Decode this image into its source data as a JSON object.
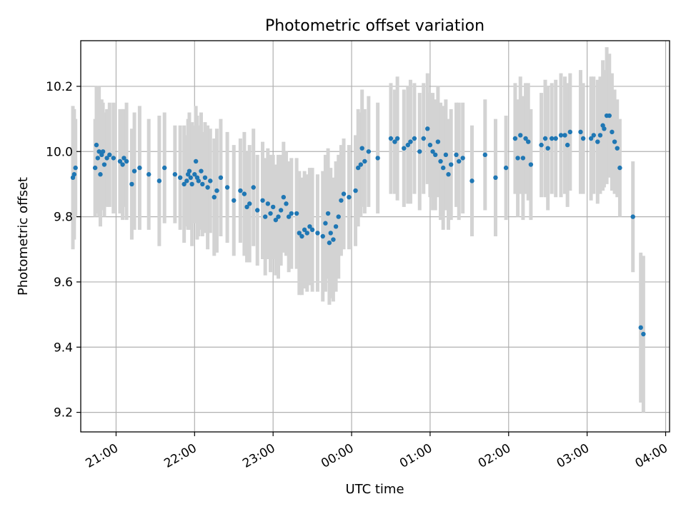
{
  "chart_data": {
    "type": "scatter",
    "title": "Photometric offset variation",
    "xlabel": "UTC time",
    "ylabel": "Photometric offset",
    "x_unit": "UTC time (HH:MM)",
    "xlim": [
      "20:33",
      "04:03"
    ],
    "ylim": [
      9.14,
      10.34
    ],
    "x_ticks": [
      "21:00",
      "22:00",
      "23:00",
      "00:00",
      "01:00",
      "02:00",
      "03:00",
      "04:00"
    ],
    "y_ticks": [
      9.2,
      9.4,
      9.6,
      9.8,
      10.0,
      10.2
    ],
    "y_tick_labels": [
      "9.2",
      "9.4",
      "9.6",
      "9.8",
      "10.0",
      "10.2"
    ],
    "grid": true,
    "colors": {
      "points": "#1f77b4",
      "errorbars": "#d3d3d3"
    },
    "series": [
      {
        "points": [
          [
            "20:27",
            9.92,
            0.22
          ],
          [
            "20:28",
            9.93,
            0.2
          ],
          [
            "20:29",
            9.95,
            0.15
          ],
          [
            "20:44",
            9.95,
            0.15
          ],
          [
            "20:45",
            10.02,
            0.18
          ],
          [
            "20:46",
            9.98,
            0.17
          ],
          [
            "20:47",
            10.0,
            0.2
          ],
          [
            "20:48",
            9.93,
            0.16
          ],
          [
            "20:49",
            9.99,
            0.17
          ],
          [
            "20:50",
            10.0,
            0.15
          ],
          [
            "20:51",
            9.96,
            0.16
          ],
          [
            "20:53",
            9.98,
            0.15
          ],
          [
            "20:55",
            9.99,
            0.16
          ],
          [
            "20:58",
            9.98,
            0.17
          ],
          [
            "21:03",
            9.97,
            0.16
          ],
          [
            "21:05",
            9.96,
            0.17
          ],
          [
            "21:06",
            9.98,
            0.15
          ],
          [
            "21:08",
            9.97,
            0.18
          ],
          [
            "21:12",
            9.9,
            0.17
          ],
          [
            "21:14",
            9.94,
            0.18
          ],
          [
            "21:18",
            9.95,
            0.19
          ],
          [
            "21:25",
            9.93,
            0.17
          ],
          [
            "21:33",
            9.91,
            0.2
          ],
          [
            "21:37",
            9.95,
            0.17
          ],
          [
            "21:45",
            9.93,
            0.15
          ],
          [
            "21:49",
            9.92,
            0.16
          ],
          [
            "21:52",
            9.9,
            0.18
          ],
          [
            "21:54",
            9.91,
            0.14
          ],
          [
            "21:55",
            9.93,
            0.17
          ],
          [
            "21:56",
            9.94,
            0.18
          ],
          [
            "21:57",
            9.92,
            0.16
          ],
          [
            "21:58",
            9.9,
            0.19
          ],
          [
            "22:00",
            9.93,
            0.15
          ],
          [
            "22:01",
            9.97,
            0.17
          ],
          [
            "22:02",
            9.92,
            0.19
          ],
          [
            "22:03",
            9.91,
            0.17
          ],
          [
            "22:05",
            9.94,
            0.18
          ],
          [
            "22:06",
            9.9,
            0.16
          ],
          [
            "22:08",
            9.92,
            0.17
          ],
          [
            "22:10",
            9.89,
            0.19
          ],
          [
            "22:12",
            9.91,
            0.16
          ],
          [
            "22:15",
            9.86,
            0.18
          ],
          [
            "22:17",
            9.88,
            0.19
          ],
          [
            "22:20",
            9.92,
            0.18
          ],
          [
            "22:25",
            9.89,
            0.17
          ],
          [
            "22:30",
            9.85,
            0.17
          ],
          [
            "22:35",
            9.88,
            0.16
          ],
          [
            "22:38",
            9.87,
            0.19
          ],
          [
            "22:40",
            9.83,
            0.17
          ],
          [
            "22:42",
            9.84,
            0.18
          ],
          [
            "22:45",
            9.89,
            0.18
          ],
          [
            "22:48",
            9.82,
            0.17
          ],
          [
            "22:52",
            9.85,
            0.18
          ],
          [
            "22:54",
            9.8,
            0.18
          ],
          [
            "22:56",
            9.84,
            0.17
          ],
          [
            "22:58",
            9.81,
            0.18
          ],
          [
            "23:00",
            9.83,
            0.16
          ],
          [
            "23:02",
            9.79,
            0.17
          ],
          [
            "23:04",
            9.8,
            0.19
          ],
          [
            "23:06",
            9.82,
            0.17
          ],
          [
            "23:08",
            9.86,
            0.17
          ],
          [
            "23:10",
            9.84,
            0.16
          ],
          [
            "23:12",
            9.8,
            0.17
          ],
          [
            "23:14",
            9.81,
            0.17
          ],
          [
            "23:18",
            9.81,
            0.17
          ],
          [
            "23:20",
            9.75,
            0.19
          ],
          [
            "23:22",
            9.74,
            0.18
          ],
          [
            "23:24",
            9.76,
            0.18
          ],
          [
            "23:26",
            9.75,
            0.18
          ],
          [
            "23:28",
            9.77,
            0.18
          ],
          [
            "23:30",
            9.76,
            0.19
          ],
          [
            "23:34",
            9.75,
            0.18
          ],
          [
            "23:38",
            9.74,
            0.2
          ],
          [
            "23:40",
            9.78,
            0.21
          ],
          [
            "23:42",
            9.81,
            0.2
          ],
          [
            "23:43",
            9.72,
            0.19
          ],
          [
            "23:44",
            9.75,
            0.2
          ],
          [
            "23:46",
            9.73,
            0.19
          ],
          [
            "23:48",
            9.77,
            0.2
          ],
          [
            "23:50",
            9.8,
            0.19
          ],
          [
            "23:52",
            9.85,
            0.17
          ],
          [
            "23:54",
            9.87,
            0.17
          ],
          [
            "23:58",
            9.86,
            0.16
          ],
          [
            "00:03",
            9.88,
            0.17
          ],
          [
            "00:05",
            9.95,
            0.18
          ],
          [
            "00:07",
            9.96,
            0.16
          ],
          [
            "00:08",
            10.01,
            0.18
          ],
          [
            "00:10",
            9.97,
            0.16
          ],
          [
            "00:13",
            10.0,
            0.17
          ],
          [
            "00:20",
            9.98,
            0.17
          ],
          [
            "00:30",
            10.04,
            0.17
          ],
          [
            "00:33",
            10.03,
            0.16
          ],
          [
            "00:35",
            10.04,
            0.19
          ],
          [
            "00:40",
            10.01,
            0.18
          ],
          [
            "00:43",
            10.02,
            0.18
          ],
          [
            "00:45",
            10.03,
            0.19
          ],
          [
            "00:48",
            10.04,
            0.17
          ],
          [
            "00:52",
            10.0,
            0.18
          ],
          [
            "00:55",
            10.04,
            0.17
          ],
          [
            "00:58",
            10.07,
            0.17
          ],
          [
            "01:00",
            10.02,
            0.16
          ],
          [
            "01:02",
            10.0,
            0.18
          ],
          [
            "01:04",
            9.99,
            0.17
          ],
          [
            "01:06",
            10.03,
            0.17
          ],
          [
            "01:08",
            9.97,
            0.18
          ],
          [
            "01:10",
            9.95,
            0.19
          ],
          [
            "01:12",
            9.99,
            0.17
          ],
          [
            "01:14",
            9.93,
            0.17
          ],
          [
            "01:16",
            9.96,
            0.17
          ],
          [
            "01:20",
            9.99,
            0.16
          ],
          [
            "01:22",
            9.97,
            0.18
          ],
          [
            "01:25",
            9.98,
            0.17
          ],
          [
            "01:32",
            9.91,
            0.17
          ],
          [
            "01:42",
            9.99,
            0.17
          ],
          [
            "01:50",
            9.92,
            0.18
          ],
          [
            "01:58",
            9.95,
            0.16
          ],
          [
            "02:05",
            10.04,
            0.17
          ],
          [
            "02:07",
            9.98,
            0.18
          ],
          [
            "02:09",
            10.05,
            0.18
          ],
          [
            "02:11",
            9.98,
            0.19
          ],
          [
            "02:13",
            10.04,
            0.17
          ],
          [
            "02:15",
            10.03,
            0.18
          ],
          [
            "02:17",
            9.96,
            0.17
          ],
          [
            "02:25",
            10.02,
            0.16
          ],
          [
            "02:28",
            10.04,
            0.18
          ],
          [
            "02:30",
            10.01,
            0.19
          ],
          [
            "02:33",
            10.04,
            0.17
          ],
          [
            "02:36",
            10.04,
            0.18
          ],
          [
            "02:40",
            10.05,
            0.19
          ],
          [
            "02:43",
            10.05,
            0.18
          ],
          [
            "02:45",
            10.02,
            0.19
          ],
          [
            "02:47",
            10.06,
            0.18
          ],
          [
            "02:55",
            10.06,
            0.19
          ],
          [
            "02:57",
            10.04,
            0.17
          ],
          [
            "03:03",
            10.04,
            0.19
          ],
          [
            "03:05",
            10.05,
            0.18
          ],
          [
            "03:08",
            10.03,
            0.19
          ],
          [
            "03:10",
            10.05,
            0.18
          ],
          [
            "03:12",
            10.08,
            0.2
          ],
          [
            "03:13",
            10.07,
            0.18
          ],
          [
            "03:15",
            10.11,
            0.21
          ],
          [
            "03:17",
            10.11,
            0.19
          ],
          [
            "03:19",
            10.06,
            0.18
          ],
          [
            "03:21",
            10.03,
            0.16
          ],
          [
            "03:23",
            10.01,
            0.15
          ],
          [
            "03:25",
            9.95,
            0.15
          ],
          [
            "03:35",
            9.8,
            0.17
          ],
          [
            "03:41",
            9.46,
            0.23
          ],
          [
            "03:43",
            9.44,
            0.24
          ]
        ]
      }
    ]
  }
}
